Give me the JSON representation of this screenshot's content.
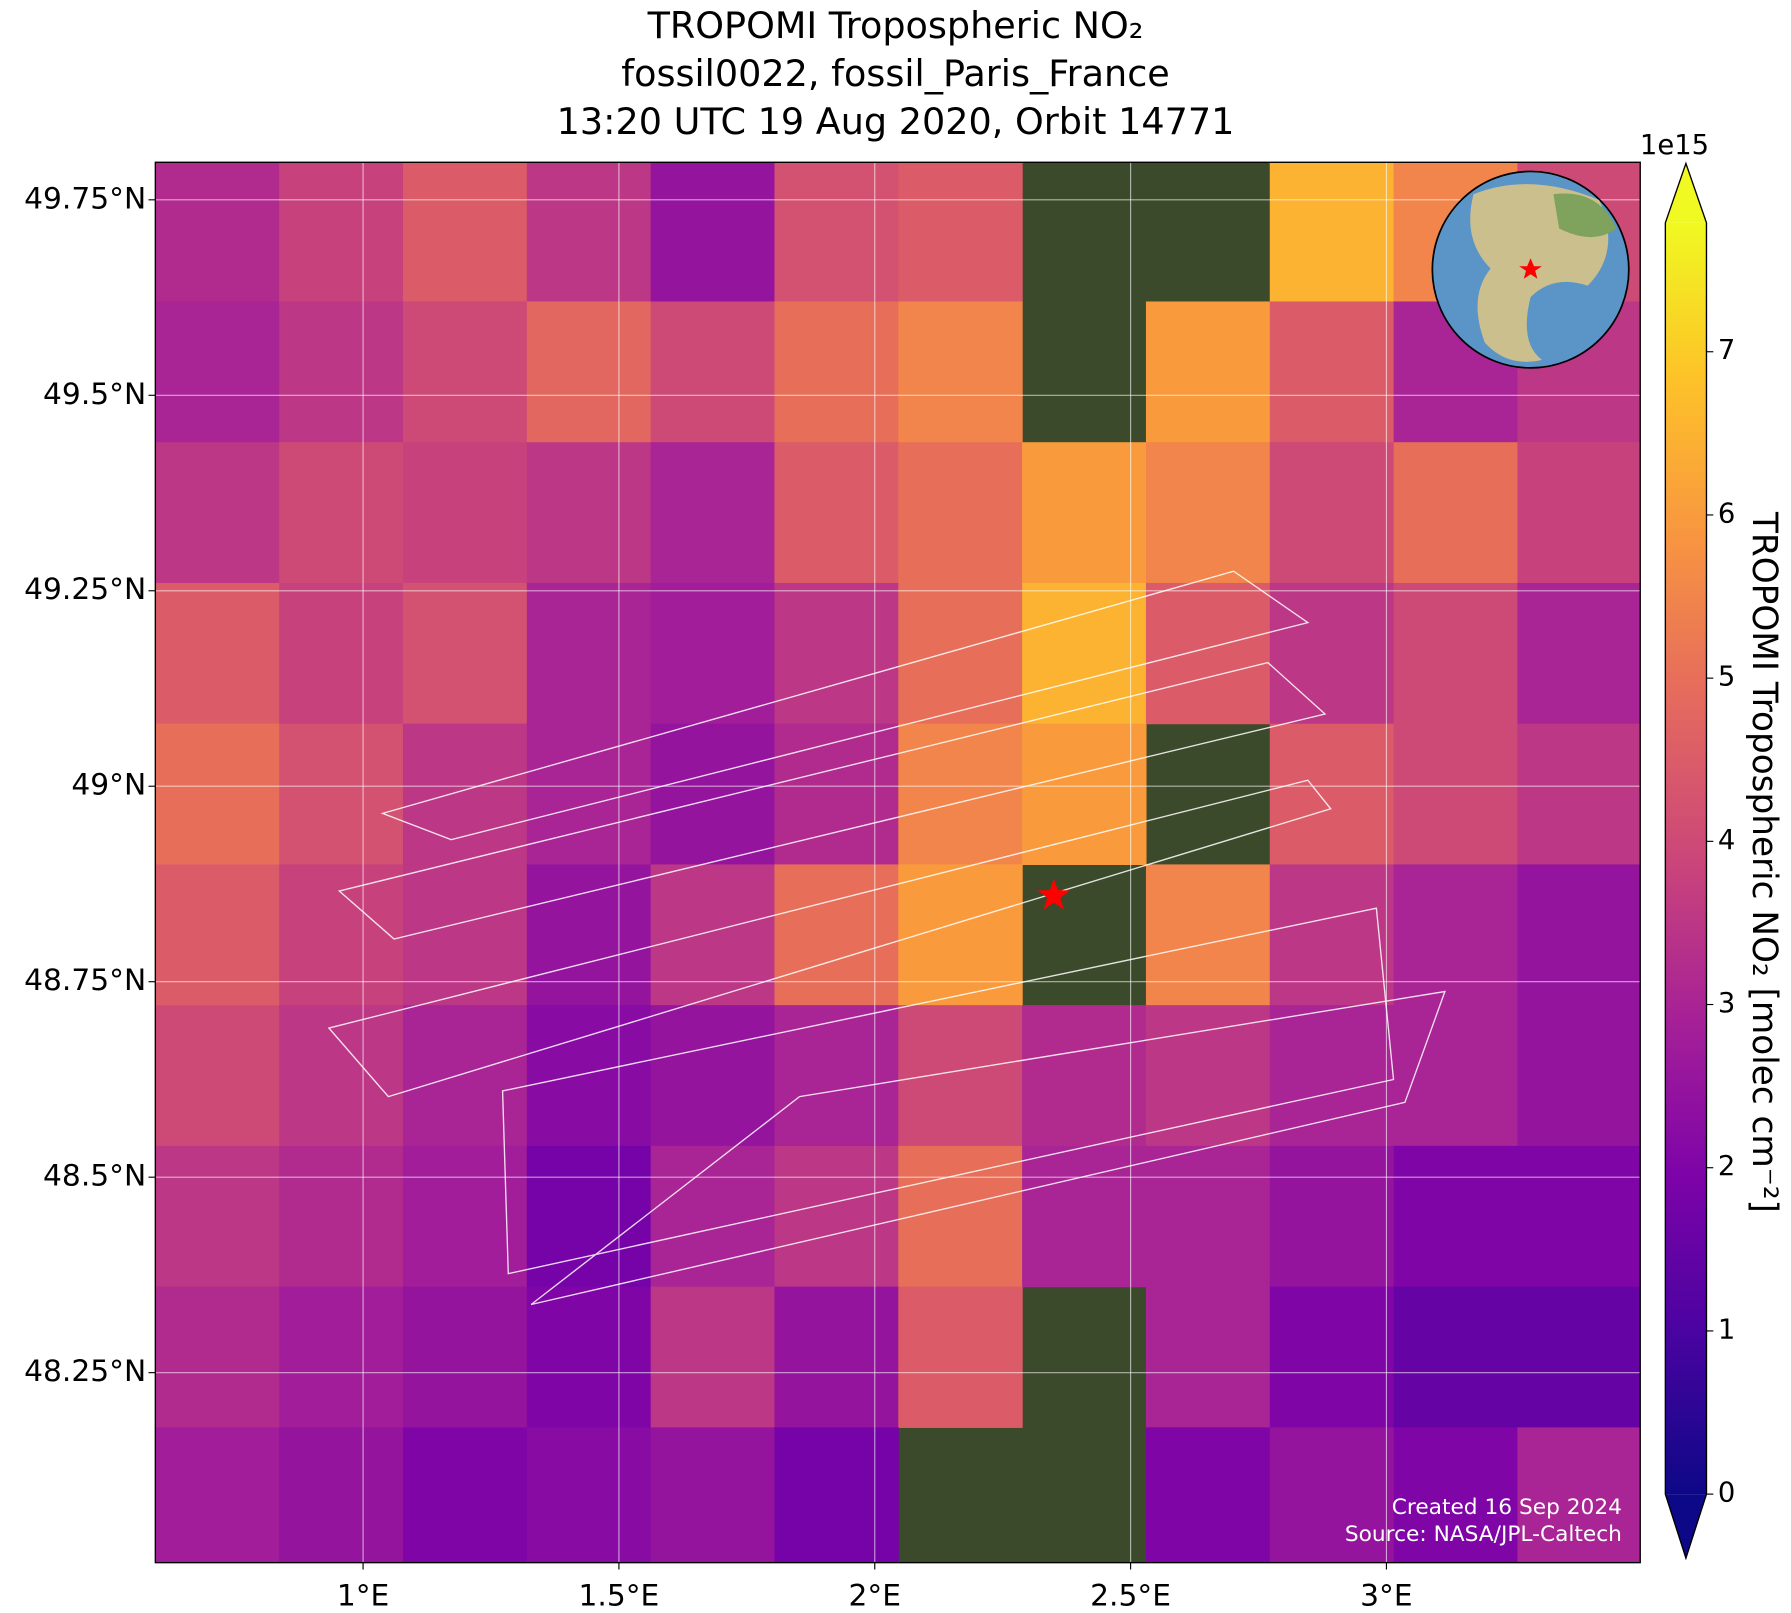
{
  "chart_data": {
    "type": "map",
    "title": [
      "TROPOMI Tropospheric NO₂",
      "fossil0022, fossil_Paris_France",
      "13:20 UTC 19 Aug 2020, Orbit 14771"
    ],
    "xlim": [
      0.594,
      3.496
    ],
    "ylim": [
      48.007,
      49.798
    ],
    "xticks": [
      {
        "value": 1,
        "label": "1°E"
      },
      {
        "value": 1.5,
        "label": "1.5°E"
      },
      {
        "value": 2,
        "label": "2°E"
      },
      {
        "value": 2.5,
        "label": "2.5°E"
      },
      {
        "value": 3,
        "label": "3°E"
      }
    ],
    "yticks": [
      {
        "value": 48.25,
        "label": "48.25°N"
      },
      {
        "value": 48.5,
        "label": "48.5°N"
      },
      {
        "value": 48.75,
        "label": "48.75°N"
      },
      {
        "value": 49,
        "label": "49°N"
      },
      {
        "value": 49.25,
        "label": "49.25°N"
      },
      {
        "value": 49.5,
        "label": "49.5°N"
      },
      {
        "value": 49.75,
        "label": "49.75°N"
      }
    ],
    "grid": true,
    "colormap": "plasma",
    "clim": [
      0,
      7.79
    ],
    "cbar_ticks": [
      0,
      1,
      2,
      3,
      4,
      5,
      6,
      7
    ],
    "cbar_offset_label": "1e15",
    "cbar_label": "TROPOMI Tropospheric NO₂ [molec cm⁻²]",
    "no2_grid": {
      "lon_edges": [
        0.594,
        0.836,
        1.078,
        1.32,
        1.562,
        1.804,
        2.046,
        2.288,
        2.53,
        2.772,
        3.014,
        3.256,
        3.496
      ],
      "lat_edges": [
        49.798,
        49.62,
        49.44,
        49.26,
        49.08,
        48.9,
        48.72,
        48.54,
        48.36,
        48.18,
        48.007
      ],
      "values": [
        [
          3.2,
          3.8,
          4.5,
          3.5,
          2.5,
          4.2,
          4.5,
          null,
          null,
          6.5,
          5.5,
          4
        ],
        [
          3,
          3.5,
          4,
          4.8,
          4,
          5,
          5.5,
          null,
          6,
          4.5,
          3,
          3.5
        ],
        [
          3.5,
          4,
          3.8,
          3.5,
          3,
          4.5,
          5,
          6,
          5.5,
          4,
          5,
          3.8
        ],
        [
          4.5,
          3.8,
          4.2,
          3,
          2.8,
          3.5,
          5,
          6.5,
          4.5,
          3.5,
          4,
          3
        ],
        [
          5,
          4.2,
          3.5,
          3,
          2.5,
          3.2,
          5.5,
          6,
          null,
          4.5,
          4,
          3.5
        ],
        [
          4.5,
          3.8,
          3.5,
          2.5,
          3.5,
          5,
          6,
          null,
          5.5,
          3.5,
          3,
          2.5
        ],
        [
          4,
          3.5,
          3,
          2.2,
          2.5,
          3,
          4,
          3.2,
          3.5,
          3,
          3,
          2.5
        ],
        [
          3.5,
          3.2,
          2.8,
          1.8,
          3,
          3.5,
          5,
          3,
          3,
          2.5,
          2,
          2
        ],
        [
          3.2,
          2.8,
          2.5,
          2,
          3.5,
          2.5,
          4.5,
          null,
          3,
          2,
          1.5,
          1.5
        ],
        [
          2.8,
          2.5,
          2,
          2.2,
          2.5,
          1.8,
          null,
          null,
          2,
          2.5,
          2,
          3
        ]
      ]
    },
    "site": {
      "lon": 2.35,
      "lat": 48.86
    },
    "annotations": [
      "Created 16 Sep 2024",
      "Source: NASA/JPL-Caltech"
    ]
  }
}
